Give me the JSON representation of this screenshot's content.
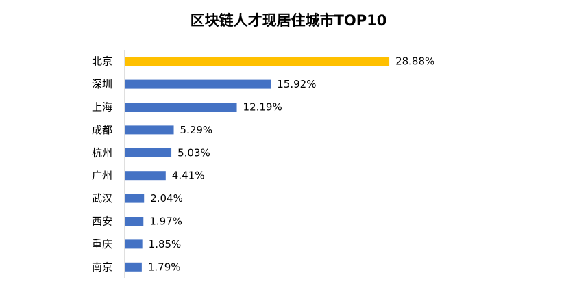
{
  "chart_data": {
    "type": "bar",
    "orientation": "horizontal",
    "title": "区块链人才现居住城市TOP10",
    "categories": [
      "北京",
      "深圳",
      "上海",
      "成都",
      "杭州",
      "广州",
      "武汉",
      "西安",
      "重庆",
      "南京"
    ],
    "values": [
      28.88,
      15.92,
      12.19,
      5.29,
      5.03,
      4.41,
      2.04,
      1.97,
      1.85,
      1.79
    ],
    "value_labels": [
      "28.88%",
      "15.92%",
      "12.19%",
      "5.29%",
      "5.03%",
      "4.41%",
      "2.04%",
      "1.97%",
      "1.85%",
      "1.79%"
    ],
    "unit": "%",
    "xlim": [
      0,
      30
    ],
    "grid": false,
    "legend": "none",
    "colors": {
      "highlight": "#FFC000",
      "default": "#4472C4",
      "axis": "#BFBFBF"
    },
    "highlight_index": 0
  }
}
